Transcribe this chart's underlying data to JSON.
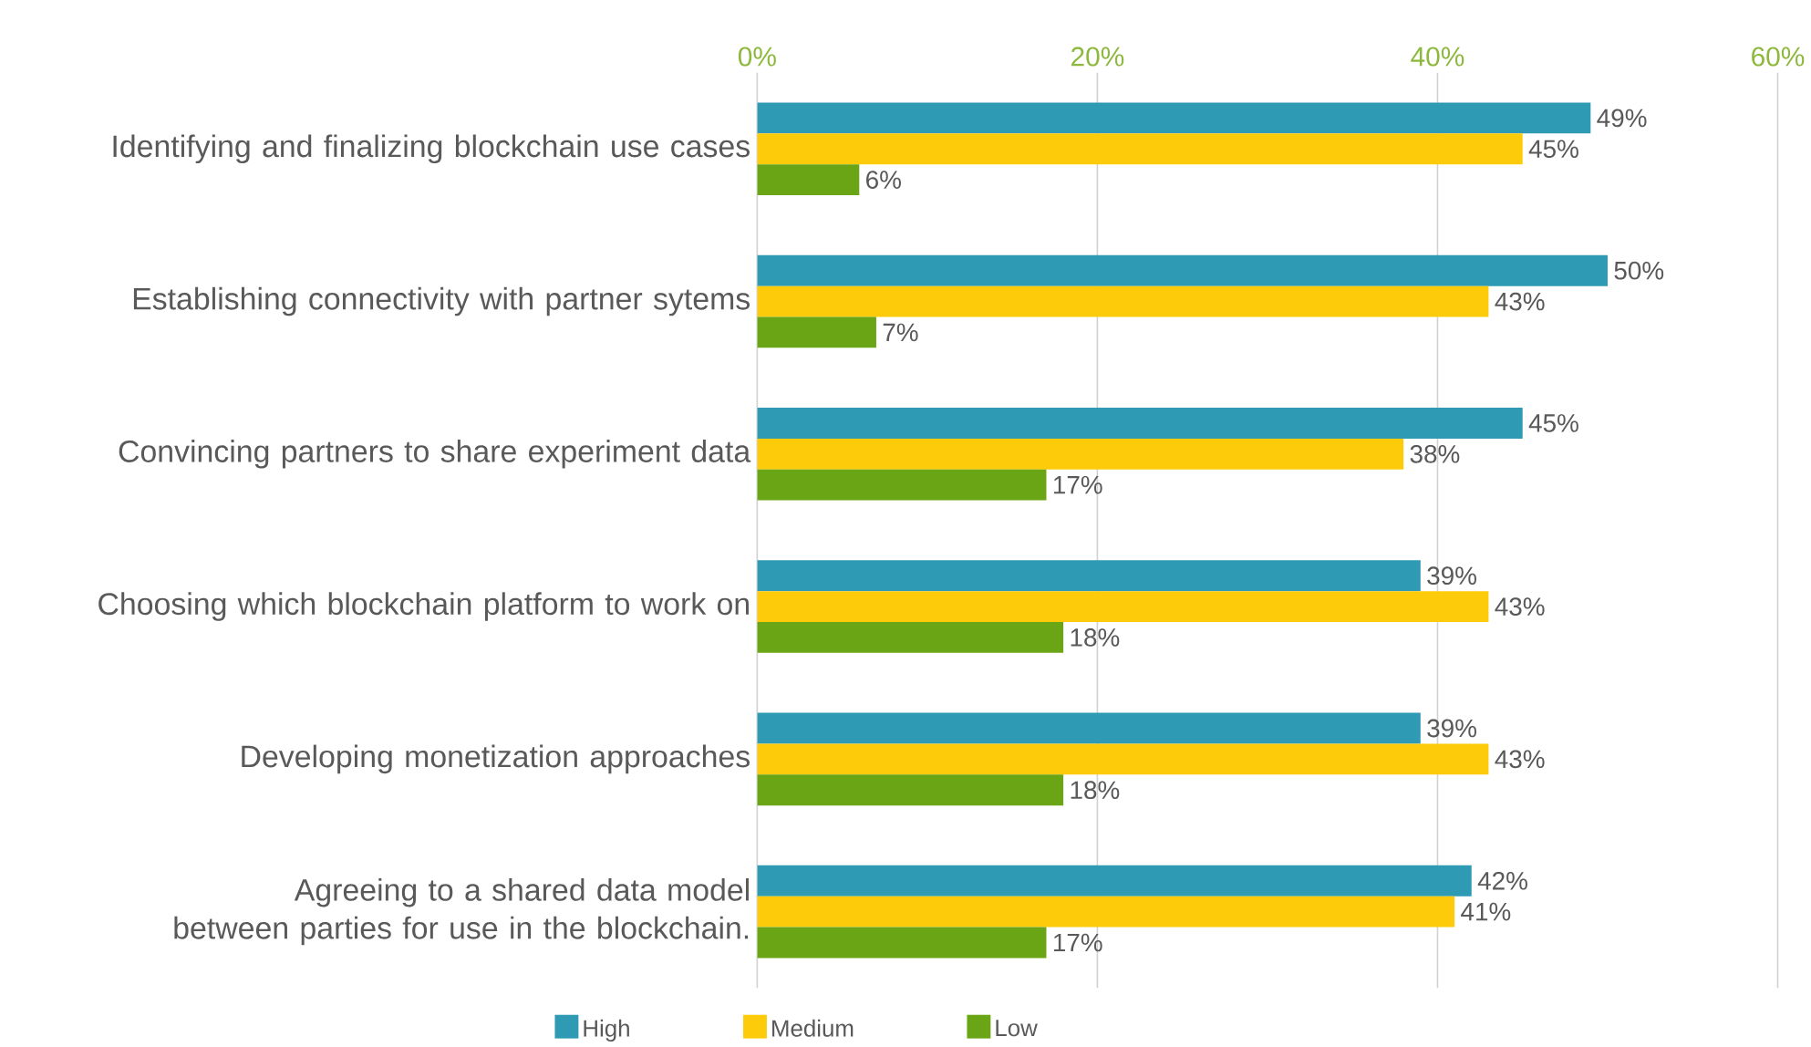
{
  "chart_data": {
    "type": "bar",
    "orientation": "horizontal",
    "categories": [
      "Identifying and finalizing blockchain use cases",
      "Establishing connectivity with partner sytems",
      "Convincing partners to share experiment data",
      "Choosing which blockchain platform to work on",
      "Developing monetization approaches",
      "Agreeing to a shared data model between parties for use in the blockchain."
    ],
    "series": [
      {
        "name": "High",
        "color": "#2e9ab4",
        "values": [
          49,
          50,
          45,
          39,
          39,
          42
        ],
        "value_labels": [
          "49%",
          "50%",
          "45%",
          "39%",
          "39%",
          "42%"
        ]
      },
      {
        "name": "Medium",
        "color": "#fecb0a",
        "values": [
          45,
          43,
          38,
          43,
          43,
          41
        ],
        "value_labels": [
          "45%",
          "43%",
          "38%",
          "43%",
          "43%",
          "41%"
        ]
      },
      {
        "name": "Low",
        "color": "#6aa516",
        "values": [
          6,
          7,
          17,
          18,
          18,
          17
        ],
        "value_labels": [
          "6%",
          "7%",
          "17%",
          "18%",
          "18%",
          "17%"
        ]
      }
    ],
    "xlim": [
      0,
      60
    ],
    "xticks": [
      {
        "value": 0,
        "label": "0%"
      },
      {
        "value": 20,
        "label": "20%"
      },
      {
        "value": 40,
        "label": "40%"
      },
      {
        "value": 60,
        "label": "60%"
      }
    ],
    "grid": "x",
    "legend": "bottom"
  }
}
